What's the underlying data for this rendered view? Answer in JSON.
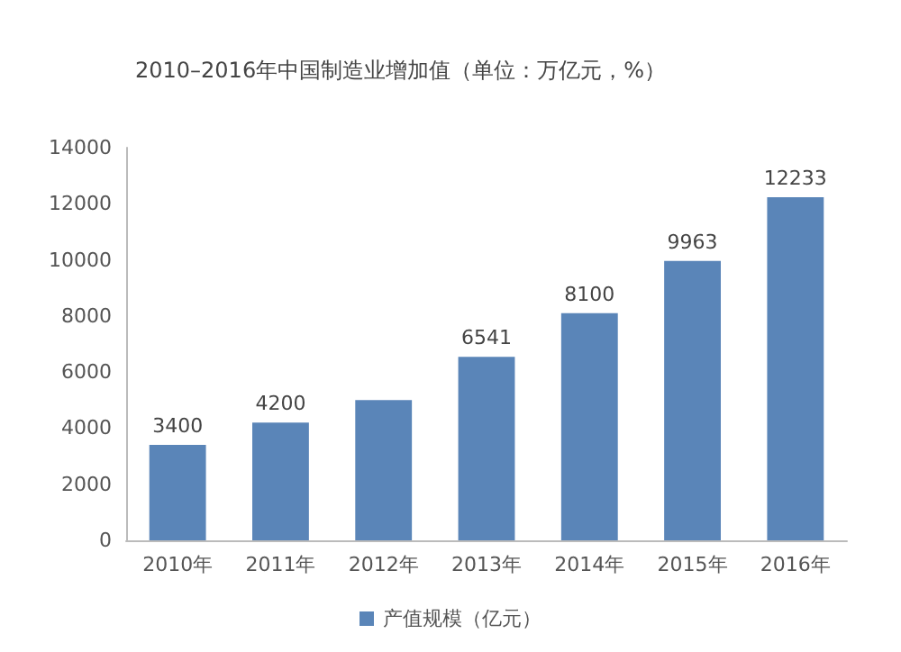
{
  "chart_data": {
    "type": "bar",
    "title": "2010–2016年中国制造业增加值（单位：万亿元，%）",
    "categories": [
      "2010年",
      "2011年",
      "2012年",
      "2013年",
      "2014年",
      "2015年",
      "2016年"
    ],
    "series": [
      {
        "name": "产值规模（亿元）",
        "color": "#5a85b8",
        "values": [
          3400,
          4200,
          5000,
          6541,
          8100,
          9963,
          12233
        ],
        "value_labels": [
          "3400",
          "4200",
          null,
          "6541",
          "8100",
          "9963",
          "12233"
        ]
      }
    ],
    "ylim": [
      0,
      14000
    ],
    "yticks": [
      0,
      2000,
      4000,
      6000,
      8000,
      10000,
      12000,
      14000
    ],
    "grid": false,
    "legend": "bottom"
  }
}
